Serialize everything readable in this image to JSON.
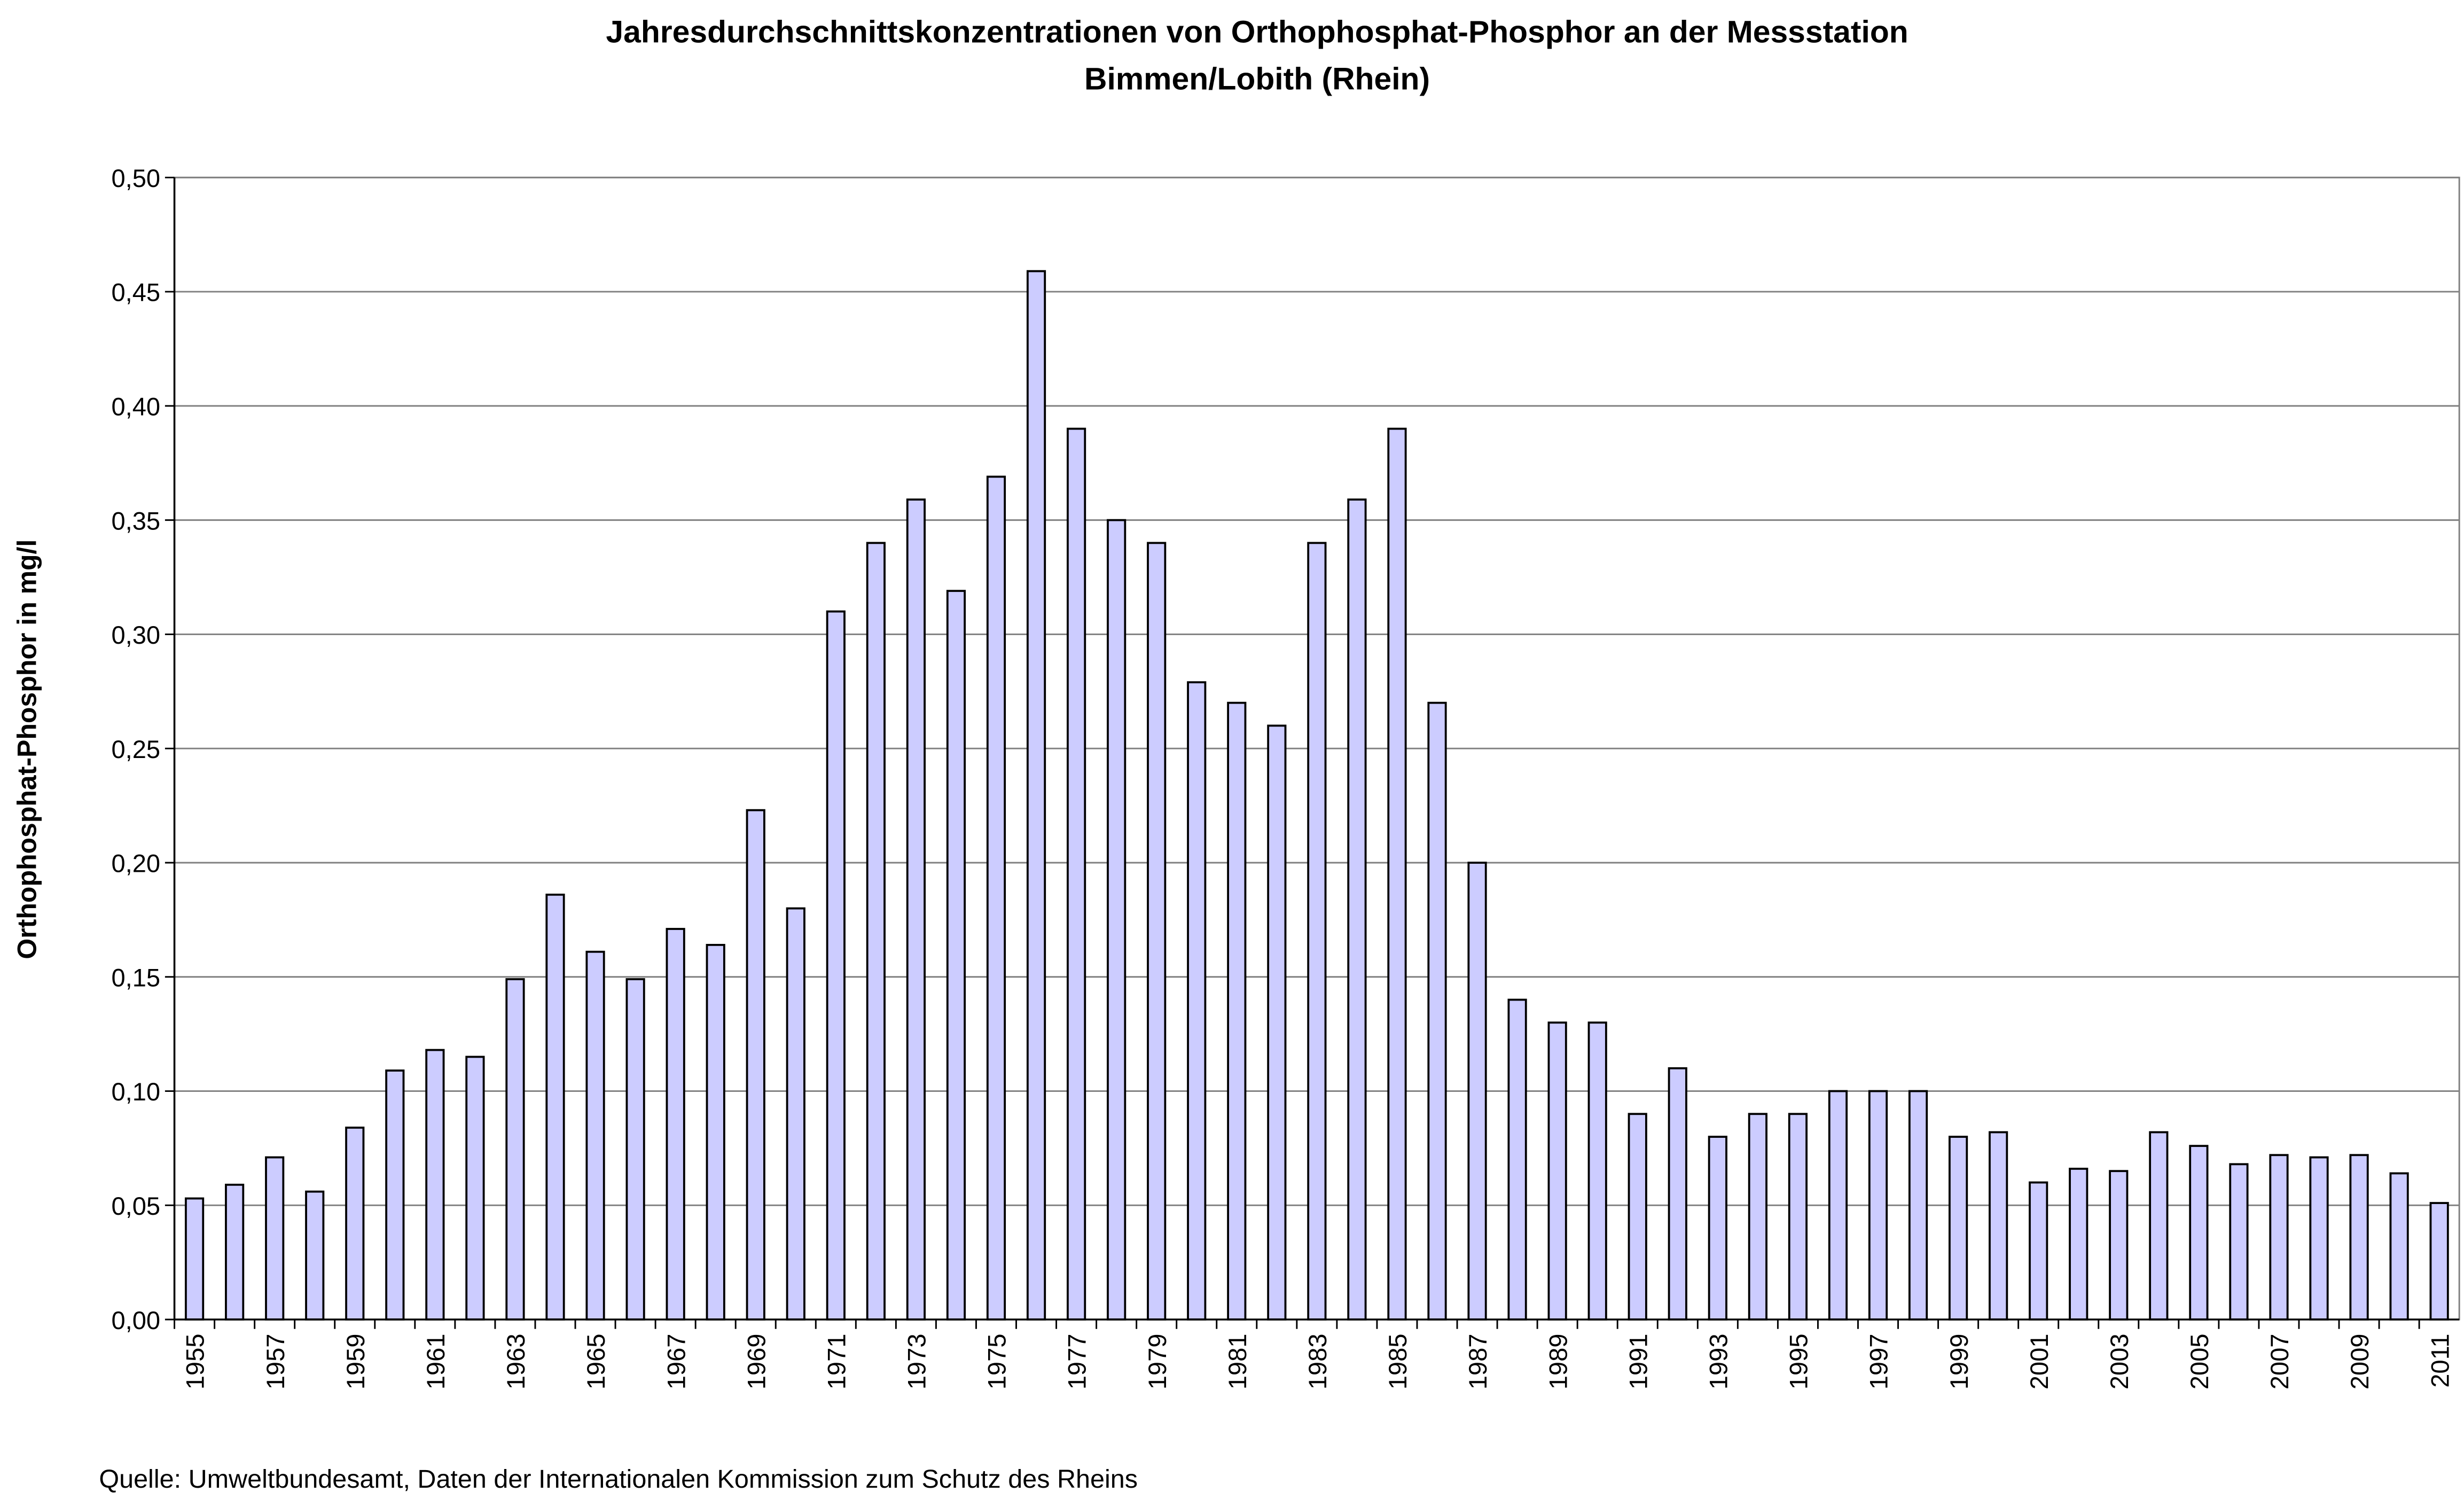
{
  "chart_data": {
    "type": "bar",
    "title": "Jahresdurchschnittskonzentrationen von Orthophosphat-Phosphor an der Messstation",
    "subtitle": "Bimmen/Lobith (Rhein)",
    "xlabel": "",
    "ylabel": "Orthophosphat-Phosphor in mg/l",
    "ylim": [
      0,
      0.5
    ],
    "yticks": [
      "0,00",
      "0,05",
      "0,10",
      "0,15",
      "0,20",
      "0,25",
      "0,30",
      "0,35",
      "0,40",
      "0,45",
      "0,50"
    ],
    "grid": true,
    "bar_color": "#ccccff",
    "categories": [
      "1955",
      "1956",
      "1957",
      "1958",
      "1959",
      "1960",
      "1961",
      "1962",
      "1963",
      "1964",
      "1965",
      "1966",
      "1967",
      "1968",
      "1969",
      "1970",
      "1971",
      "1972",
      "1973",
      "1974",
      "1975",
      "1976",
      "1977",
      "1978",
      "1979",
      "1980",
      "1981",
      "1982",
      "1983",
      "1984",
      "1985",
      "1986",
      "1987",
      "1988",
      "1989",
      "1990",
      "1991",
      "1992",
      "1993",
      "1994",
      "1995",
      "1996",
      "1997",
      "1998",
      "1999",
      "2000",
      "2001",
      "2002",
      "2003",
      "2004",
      "2005",
      "2006",
      "2007",
      "2008",
      "2009",
      "2010",
      "2011"
    ],
    "values": [
      0.053,
      0.059,
      0.071,
      0.056,
      0.084,
      0.109,
      0.118,
      0.115,
      0.149,
      0.186,
      0.161,
      0.149,
      0.171,
      0.164,
      0.223,
      0.18,
      0.31,
      0.34,
      0.359,
      0.319,
      0.369,
      0.459,
      0.39,
      0.35,
      0.34,
      0.279,
      0.27,
      0.26,
      0.34,
      0.359,
      0.39,
      0.27,
      0.2,
      0.14,
      0.13,
      0.13,
      0.09,
      0.11,
      0.08,
      0.09,
      0.09,
      0.1,
      0.1,
      0.1,
      0.08,
      0.082,
      0.06,
      0.066,
      0.065,
      0.082,
      0.076,
      0.068,
      0.072,
      0.071,
      0.072,
      0.064,
      0.051
    ],
    "source": "Quelle: Umweltbundesamt, Daten der Internationalen Kommission zum Schutz des Rheins"
  }
}
